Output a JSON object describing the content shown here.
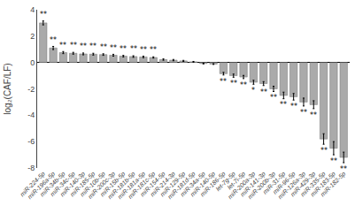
{
  "chart_data": {
    "type": "bar",
    "categories": [
      "miR-224-5p",
      "miR-196a-5p",
      "miR-34b-5p",
      "miR-34c-5p",
      "miR-140-3p",
      "miR-185-5p",
      "miR-10b-5p",
      "miR-200c-3p",
      "miR-15b-5p",
      "miR-181b-5p",
      "miR-181a-5p",
      "miR-181c-5p",
      "miR-154-5p",
      "miR-214-3p",
      "miR-129-5p",
      "miR-181d-5p",
      "miR-34a-5p",
      "miR-140-5p",
      "miR-186-5p",
      "let-7g-5p",
      "let-7i-5p",
      "miR-200a-3p",
      "miR-141-3p",
      "miR-200b-3p",
      "miR-31-5p",
      "miR-96-5p",
      "miR-126a-3p",
      "miR-429-3p",
      "miR-335-5p",
      "miR-183-5p",
      "miR-182-5p"
    ],
    "values": [
      3.0,
      1.1,
      0.75,
      0.7,
      0.65,
      0.63,
      0.6,
      0.55,
      0.48,
      0.45,
      0.42,
      0.38,
      0.22,
      0.18,
      0.12,
      0.05,
      -0.08,
      -0.12,
      -0.85,
      -1.0,
      -1.1,
      -1.5,
      -1.6,
      -2.0,
      -2.5,
      -2.6,
      -3.0,
      -3.2,
      -5.8,
      -6.5,
      -7.2
    ],
    "errors": [
      0.15,
      0.12,
      0.08,
      0.07,
      0.07,
      0.07,
      0.06,
      0.07,
      0.06,
      0.06,
      0.06,
      0.05,
      0.05,
      0.05,
      0.04,
      0.03,
      0.03,
      0.03,
      0.1,
      0.12,
      0.12,
      0.15,
      0.15,
      0.2,
      0.25,
      0.25,
      0.3,
      0.3,
      0.4,
      0.5,
      0.4
    ],
    "annotations": [
      {
        "category": "miR-224-5p",
        "text": "**"
      },
      {
        "category": "miR-196a-5p",
        "text": "**"
      },
      {
        "category": "miR-34b-5p",
        "text": "**"
      },
      {
        "category": "miR-34c-5p",
        "text": "**"
      },
      {
        "category": "miR-140-3p",
        "text": "**"
      },
      {
        "category": "miR-185-5p",
        "text": "**"
      },
      {
        "category": "miR-10b-5p",
        "text": "**"
      },
      {
        "category": "miR-200c-3p",
        "text": "**"
      },
      {
        "category": "miR-15b-5p",
        "text": "**"
      },
      {
        "category": "miR-181b-5p",
        "text": "**"
      },
      {
        "category": "miR-181a-5p",
        "text": "**"
      },
      {
        "category": "miR-181c-5p",
        "text": "**"
      },
      {
        "category": "miR-186-5p",
        "text": "**"
      },
      {
        "category": "let-7g-5p",
        "text": "**"
      },
      {
        "category": "let-7i-5p",
        "text": "**"
      },
      {
        "category": "miR-200a-3p",
        "text": "*"
      },
      {
        "category": "miR-141-3p",
        "text": "**"
      },
      {
        "category": "miR-200b-3p",
        "text": "**"
      },
      {
        "category": "miR-31-5p",
        "text": "**"
      },
      {
        "category": "miR-96-5p",
        "text": "**"
      },
      {
        "category": "miR-126a-3p",
        "text": "**"
      },
      {
        "category": "miR-429-3p",
        "text": "**"
      },
      {
        "category": "miR-335-5p",
        "text": "**"
      },
      {
        "category": "miR-183-5p",
        "text": "**"
      },
      {
        "category": "miR-182-5p",
        "text": "**"
      }
    ],
    "color": "#aaaaaa",
    "ylabel": "log₂(CAF/LF)",
    "ylim": [
      -8,
      4
    ],
    "yticks": [
      -8,
      -6,
      -4,
      -2,
      0,
      2,
      4
    ],
    "grid": false
  }
}
